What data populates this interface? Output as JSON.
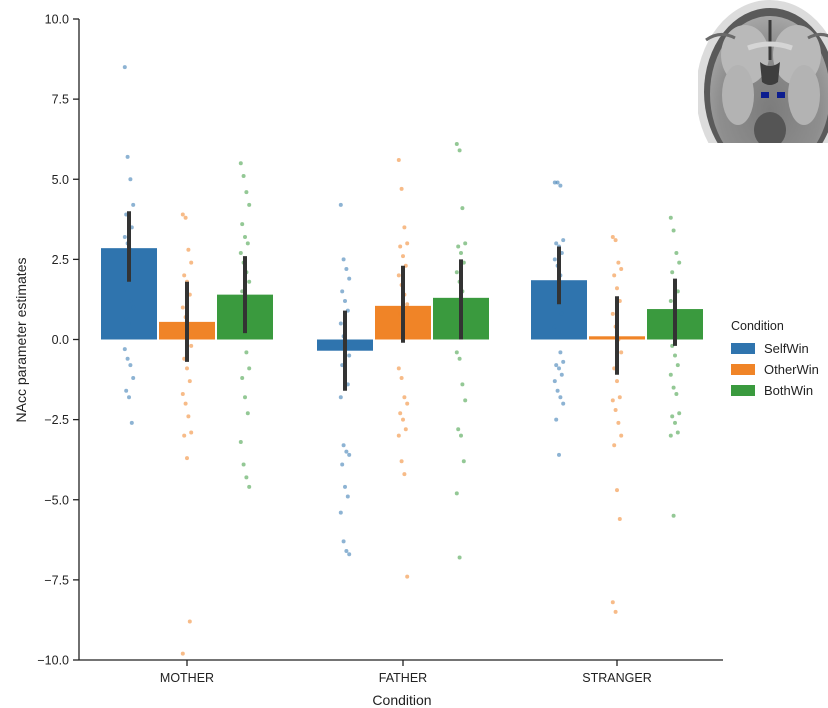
{
  "chart_data": {
    "type": "bar",
    "title": "",
    "xlabel": "Condition",
    "ylabel": "NAcc parameter estimates",
    "ylim": [
      -10,
      10
    ],
    "yticks": [
      -10.0,
      -7.5,
      -5.0,
      -2.5,
      0.0,
      2.5,
      5.0,
      7.5,
      10.0
    ],
    "ytick_labels": [
      "−10.0",
      "−7.5",
      "−5.0",
      "−2.5",
      "0.0",
      "2.5",
      "5.0",
      "7.5",
      "10.0"
    ],
    "categories": [
      "MOTHER",
      "FATHER",
      "STRANGER"
    ],
    "legend": {
      "title": "Condition",
      "position": "right"
    },
    "series": [
      {
        "name": "SelfWin",
        "color": "#2f74ae",
        "values": [
          2.85,
          -0.35,
          1.85
        ],
        "ci": [
          [
            1.8,
            4.0
          ],
          [
            -1.6,
            0.9
          ],
          [
            1.1,
            2.9
          ]
        ],
        "points": [
          [
            8.5,
            5.7,
            5.0,
            4.2,
            3.9,
            3.7,
            3.5,
            3.2,
            3.0,
            2.8,
            2.6,
            2.4,
            2.2,
            2.0,
            1.8,
            1.5,
            1.2,
            1.0,
            0.7,
            0.5,
            0.2,
            -0.3,
            -0.6,
            -0.8,
            -1.2,
            -1.6,
            -1.8,
            -2.6
          ],
          [
            4.2,
            2.5,
            2.2,
            1.9,
            1.5,
            1.2,
            0.9,
            0.5,
            0.1,
            -0.2,
            -0.5,
            -0.8,
            -1.1,
            -1.4,
            -1.8,
            -3.3,
            -3.5,
            -3.6,
            -3.9,
            -4.6,
            -4.9,
            -5.4,
            -6.3,
            -6.6,
            -6.7
          ],
          [
            4.9,
            4.9,
            4.8,
            3.1,
            3.0,
            2.9,
            2.7,
            2.5,
            2.3,
            2.0,
            1.7,
            1.4,
            1.1,
            0.8,
            0.4,
            0.1,
            -0.4,
            -0.7,
            -0.8,
            -0.9,
            -1.1,
            -1.3,
            -1.6,
            -1.8,
            -2.0,
            -2.5,
            -3.6
          ]
        ]
      },
      {
        "name": "OtherWin",
        "color": "#f08427",
        "values": [
          0.55,
          1.05,
          0.1
        ],
        "ci": [
          [
            -0.7,
            1.8
          ],
          [
            -0.1,
            2.3
          ],
          [
            -1.1,
            1.35
          ]
        ],
        "points": [
          [
            3.9,
            3.8,
            2.8,
            2.4,
            2.0,
            1.8,
            1.4,
            1.0,
            0.7,
            0.3,
            -0.2,
            -0.6,
            -0.9,
            -1.3,
            -1.7,
            -2.0,
            -2.4,
            -2.9,
            -3.0,
            -3.7,
            -8.8,
            -9.8
          ],
          [
            5.6,
            4.7,
            3.5,
            3.0,
            2.9,
            2.6,
            2.3,
            2.0,
            1.7,
            1.4,
            1.1,
            0.8,
            0.5,
            0.2,
            -0.9,
            -1.2,
            -1.8,
            -2.0,
            -2.3,
            -2.5,
            -2.8,
            -3.0,
            -3.8,
            -4.2,
            -7.4
          ],
          [
            3.2,
            3.1,
            2.4,
            2.2,
            2.0,
            1.6,
            1.2,
            0.8,
            0.4,
            0.0,
            -0.4,
            -0.9,
            -1.3,
            -1.8,
            -1.9,
            -2.2,
            -2.6,
            -3.0,
            -3.3,
            -4.7,
            -5.6,
            -8.2,
            -8.5
          ]
        ]
      },
      {
        "name": "BothWin",
        "color": "#3a9a3e",
        "values": [
          1.4,
          1.3,
          0.95
        ],
        "ci": [
          [
            0.2,
            2.6
          ],
          [
            0.0,
            2.5
          ],
          [
            -0.2,
            1.9
          ]
        ],
        "points": [
          [
            5.5,
            5.1,
            4.6,
            4.2,
            3.6,
            3.2,
            3.0,
            2.7,
            2.4,
            2.1,
            1.8,
            1.5,
            1.2,
            0.9,
            0.6,
            0.3,
            -0.4,
            -0.9,
            -1.2,
            -1.8,
            -2.3,
            -3.2,
            -3.9,
            -4.3,
            -4.6
          ],
          [
            6.1,
            5.9,
            4.1,
            3.0,
            2.9,
            2.7,
            2.4,
            2.1,
            1.8,
            1.5,
            1.2,
            0.9,
            0.6,
            0.3,
            -0.4,
            -0.6,
            -1.4,
            -1.9,
            -2.8,
            -3.0,
            -3.8,
            -4.8,
            -6.8
          ],
          [
            3.8,
            3.4,
            2.7,
            2.4,
            2.1,
            1.8,
            1.5,
            1.2,
            0.9,
            0.6,
            0.3,
            -0.2,
            -0.5,
            -0.8,
            -1.1,
            -1.5,
            -1.7,
            -2.3,
            -2.4,
            -2.6,
            -2.9,
            -3.0,
            -5.5
          ]
        ]
      }
    ]
  },
  "inset": {
    "name": "brain-roi-inset",
    "roi_color": "#0c1d8f"
  }
}
